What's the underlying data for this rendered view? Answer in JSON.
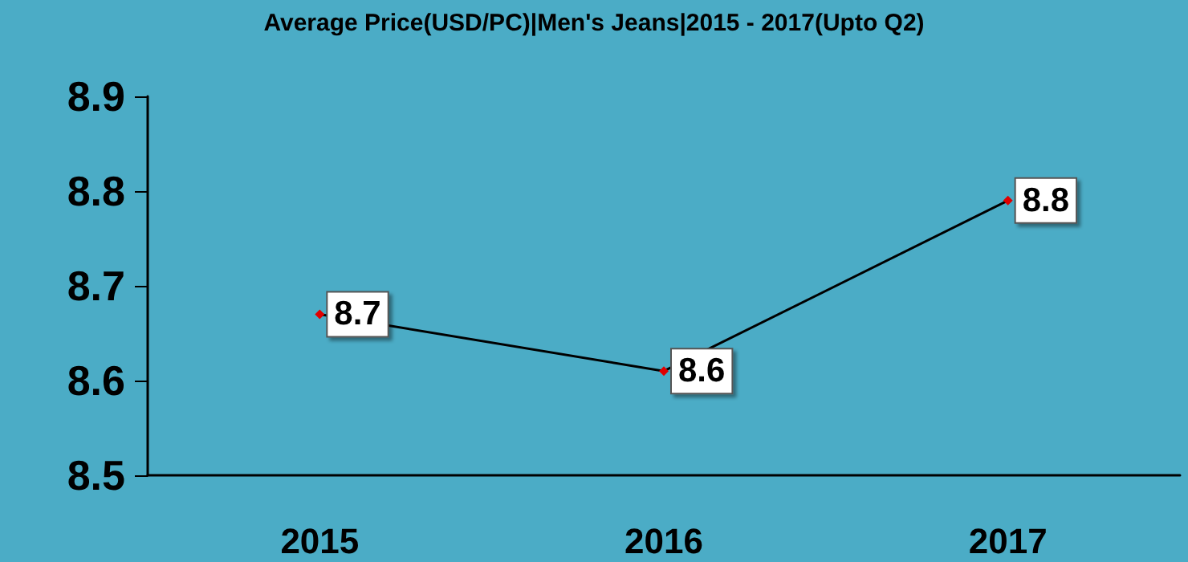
{
  "chart_data": {
    "type": "line",
    "title": "Average Price(USD/PC)|Men's Jeans|2015 - 2017(Upto Q2)",
    "categories": [
      "2015",
      "2016",
      "2017"
    ],
    "series": [
      {
        "color": "#000000",
        "values": [
          8.67,
          8.61,
          8.79
        ],
        "value_labels": [
          "8.7",
          "8.6",
          "8.8"
        ]
      }
    ],
    "ylim": [
      8.5,
      8.9
    ],
    "yticks": [
      8.5,
      8.6,
      8.7,
      8.8,
      8.9
    ],
    "grid": false,
    "marker": "diamond",
    "line_style": "solid"
  }
}
